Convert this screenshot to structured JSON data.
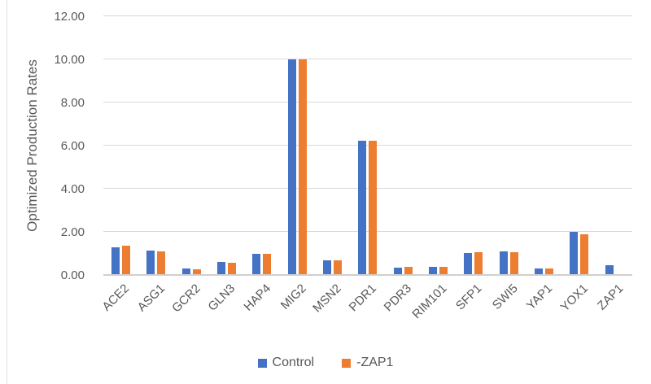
{
  "chart_data": {
    "type": "bar",
    "title": "",
    "xlabel": "",
    "ylabel": "Optimized Production Rates",
    "ylim": [
      0,
      12
    ],
    "ytick_step": 2,
    "ytick_labels": [
      "0.00",
      "2.00",
      "4.00",
      "6.00",
      "8.00",
      "10.00",
      "12.00"
    ],
    "grid": true,
    "legend_position": "bottom",
    "categories": [
      "ACE2",
      "ASG1",
      "GCR2",
      "GLN3",
      "HAP4",
      "MIG2",
      "MSN2",
      "PDR1",
      "PDR3",
      "RIM101",
      "SFP1",
      "SWI5",
      "YAP1",
      "YOX1",
      "ZAP1"
    ],
    "series": [
      {
        "name": "Control",
        "color": "#4472C4",
        "values": [
          1.28,
          1.13,
          0.31,
          0.59,
          0.99,
          10.0,
          0.68,
          6.21,
          0.35,
          0.36,
          1.03,
          1.11,
          0.32,
          2.0,
          0.47
        ]
      },
      {
        "name": "-ZAP1",
        "color": "#ED7D31",
        "values": [
          1.35,
          1.11,
          0.28,
          0.58,
          1.0,
          10.0,
          0.67,
          6.24,
          0.39,
          0.37,
          1.04,
          1.07,
          0.32,
          1.87,
          0.0
        ]
      }
    ]
  },
  "colors": {
    "gridline": "#d9d9d9",
    "axis_text": "#595959",
    "background": "#ffffff"
  }
}
